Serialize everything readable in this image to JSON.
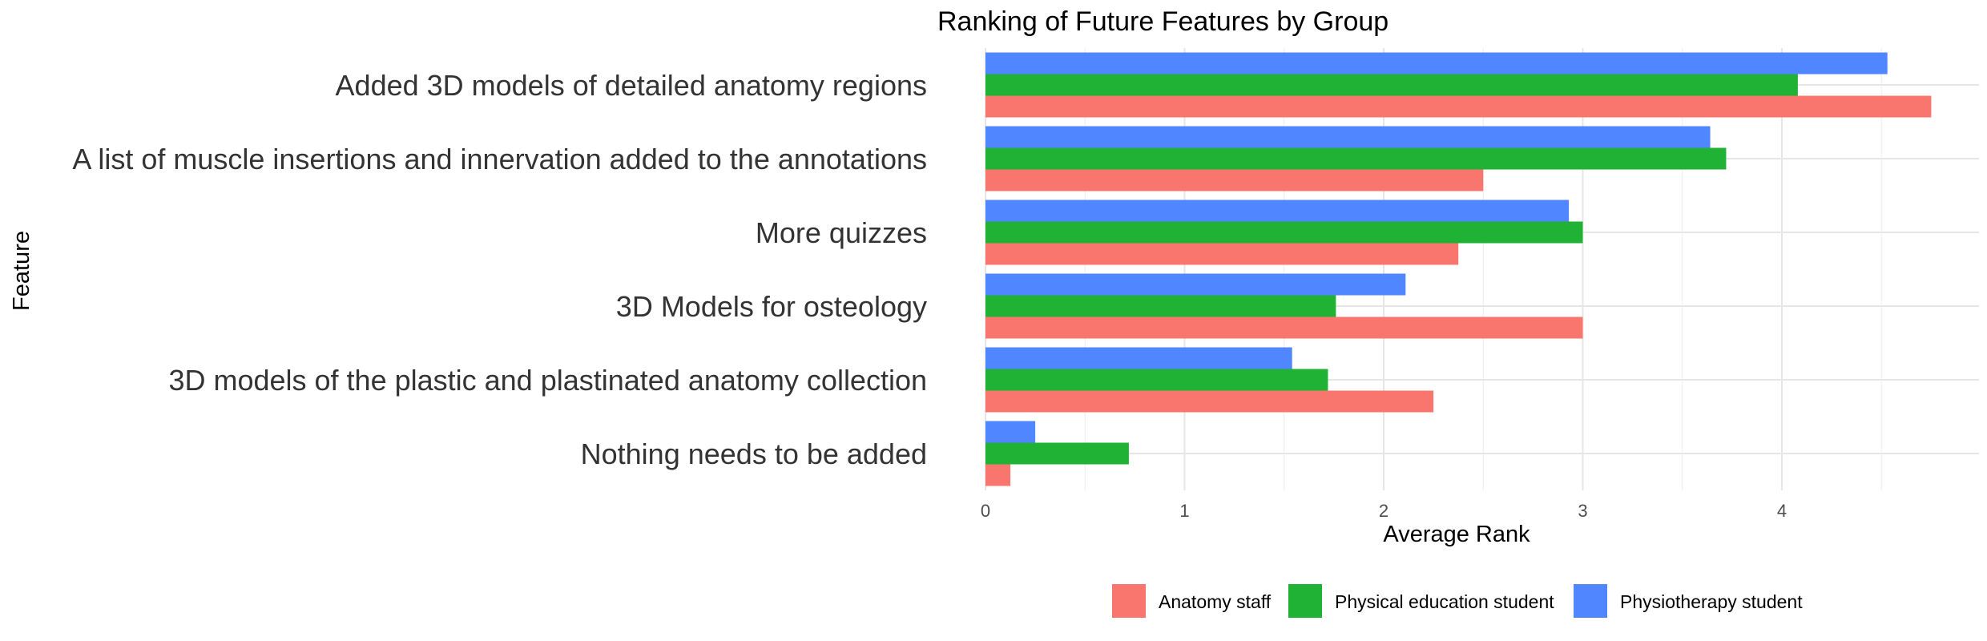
{
  "chart_data": {
    "type": "bar",
    "orientation": "horizontal",
    "title": "Ranking of Future Features by Group",
    "xlabel": "Average Rank",
    "ylabel": "Feature",
    "xlim": [
      0,
      4.9
    ],
    "x_ticks": [
      0,
      1,
      2,
      3,
      4
    ],
    "grid": true,
    "legend_position": "bottom",
    "categories": [
      "Added 3D models of detailed anatomy regions",
      "A list of muscle insertions and innervation added to the annotations",
      "More quizzes",
      "3D Models for osteology",
      "3D models of the plastic and plastinated anatomy collection",
      "Nothing needs to be added"
    ],
    "series": [
      {
        "name": "Anatomy staff",
        "color": "#F8766D",
        "values": [
          4.75,
          2.5,
          2.375,
          3.0,
          2.25,
          0.125
        ]
      },
      {
        "name": "Physical education student",
        "color": "#1FB234",
        "values": [
          4.08,
          3.72,
          3.0,
          1.76,
          1.72,
          0.72
        ]
      },
      {
        "name": "Physiotherapy student",
        "color": "#5086FF",
        "values": [
          4.53,
          3.64,
          2.93,
          2.11,
          1.54,
          0.25
        ]
      }
    ]
  }
}
